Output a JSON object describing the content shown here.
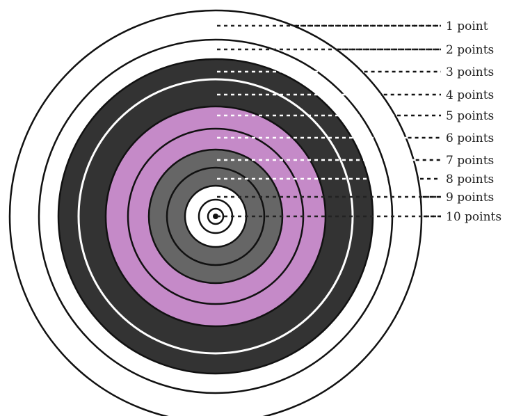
{
  "diagram": {
    "rings": [
      {
        "label": "1 point",
        "fill": "#ffffff",
        "leader": "#222222"
      },
      {
        "label": "2 points",
        "fill": "#ffffff",
        "leader": "#222222"
      },
      {
        "label": "3 points",
        "fill": "#333333",
        "leader": "#ffffff"
      },
      {
        "label": "4 points",
        "fill": "#333333",
        "leader": "#ffffff"
      },
      {
        "label": "5 points",
        "fill": "#c58ac8",
        "leader": "#ffffff"
      },
      {
        "label": "6 points",
        "fill": "#c58ac8",
        "leader": "#ffffff"
      },
      {
        "label": "7 points",
        "fill": "#666666",
        "leader": "#ffffff"
      },
      {
        "label": "8 points",
        "fill": "#666666",
        "leader": "#ffffff"
      },
      {
        "label": "9 points",
        "fill": "#ffffff",
        "leader": "#222222"
      },
      {
        "label": "10 points",
        "fill": "#ffffff",
        "leader": "#222222"
      }
    ],
    "colors": {
      "ring_outline": "#111111",
      "dark_separator": "#ffffff",
      "dark": "#333333",
      "pink": "#c58ac8",
      "gray": "#666666",
      "white": "#ffffff"
    }
  }
}
